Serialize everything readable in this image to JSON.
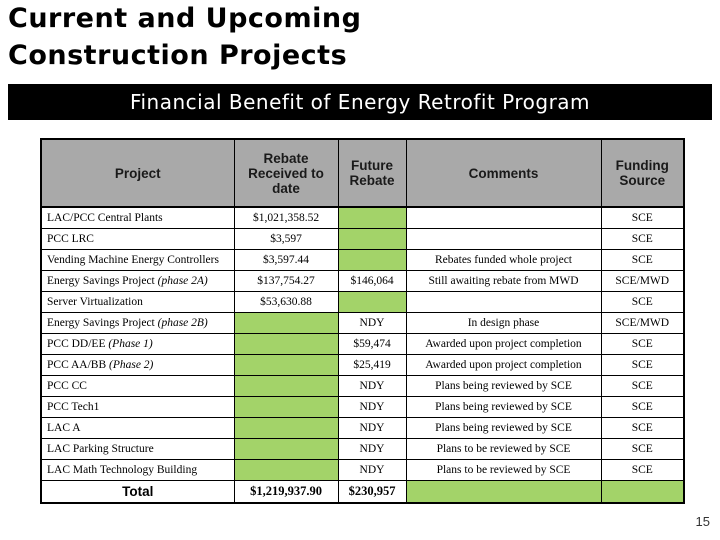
{
  "slide": {
    "title_line1": "Current and Upcoming",
    "title_line2": "Construction Projects",
    "banner": "Financial Benefit of Energy Retrofit Program",
    "page_number": "15"
  },
  "colors": {
    "header_bg": "#A9A9A9",
    "highlight_green": "#A3D369",
    "banner_bg": "#000000",
    "banner_text": "#ffffff"
  },
  "table": {
    "headers": [
      "Project",
      "Rebate Received to date",
      "Future Rebate",
      "Comments",
      "Funding Source"
    ],
    "rows": [
      {
        "project": "LAC/PCC Central Plants",
        "project_italic": "",
        "rebate": "$1,021,358.52",
        "future": "",
        "comments": "",
        "funding": "SCE",
        "green": [
          "future"
        ]
      },
      {
        "project": "PCC LRC",
        "project_italic": "",
        "rebate": "$3,597",
        "future": "",
        "comments": "",
        "funding": "SCE",
        "green": [
          "future"
        ]
      },
      {
        "project": "Vending Machine Energy Controllers",
        "project_italic": "",
        "rebate": "$3,597.44",
        "future": "",
        "comments": "Rebates funded whole project",
        "funding": "SCE",
        "green": [
          "future"
        ]
      },
      {
        "project": "Energy Savings Project ",
        "project_italic": "(phase 2A)",
        "rebate": "$137,754.27",
        "future": "$146,064",
        "comments": "Still awaiting rebate from MWD",
        "funding": "SCE/MWD",
        "green": []
      },
      {
        "project": "Server Virtualization",
        "project_italic": "",
        "rebate": "$53,630.88",
        "future": "",
        "comments": "",
        "funding": "SCE",
        "green": [
          "future"
        ]
      },
      {
        "project": "Energy Savings Project ",
        "project_italic": "(phase 2B)",
        "rebate": "",
        "future": "NDY",
        "comments": "In design phase",
        "funding": "SCE/MWD",
        "green": [
          "rebate"
        ]
      },
      {
        "project": "PCC DD/EE ",
        "project_italic": "(Phase 1)",
        "rebate": "",
        "future": "$59,474",
        "comments": "Awarded upon project completion",
        "funding": "SCE",
        "green": [
          "rebate"
        ]
      },
      {
        "project": "PCC AA/BB ",
        "project_italic": "(Phase 2)",
        "rebate": "",
        "future": "$25,419",
        "comments": "Awarded upon project completion",
        "funding": "SCE",
        "green": [
          "rebate"
        ]
      },
      {
        "project": "PCC CC",
        "project_italic": "",
        "rebate": "",
        "future": "NDY",
        "comments": "Plans being reviewed by SCE",
        "funding": "SCE",
        "green": [
          "rebate"
        ]
      },
      {
        "project": "PCC Tech1",
        "project_italic": "",
        "rebate": "",
        "future": "NDY",
        "comments": "Plans being reviewed by SCE",
        "funding": "SCE",
        "green": [
          "rebate"
        ]
      },
      {
        "project": "LAC A",
        "project_italic": "",
        "rebate": "",
        "future": "NDY",
        "comments": "Plans being reviewed by SCE",
        "funding": "SCE",
        "green": [
          "rebate"
        ]
      },
      {
        "project": "LAC Parking Structure",
        "project_italic": "",
        "rebate": "",
        "future": "NDY",
        "comments": "Plans to be reviewed by SCE",
        "funding": "SCE",
        "green": [
          "rebate"
        ]
      },
      {
        "project": "LAC Math Technology Building",
        "project_italic": "",
        "rebate": "",
        "future": "NDY",
        "comments": "Plans to be reviewed by SCE",
        "funding": "SCE",
        "green": [
          "rebate"
        ]
      }
    ],
    "total": {
      "label": "Total",
      "rebate": "$1,219,937.90",
      "future": "$230,957",
      "comments": "",
      "funding": "",
      "green": [
        "comments",
        "funding"
      ]
    }
  }
}
